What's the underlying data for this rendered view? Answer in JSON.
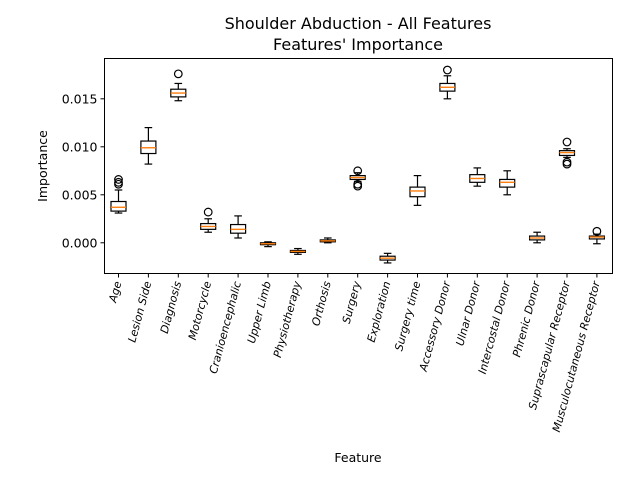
{
  "chart_data": {
    "type": "box",
    "title_line1": "Shoulder Abduction - All Features",
    "title_line2": "Features' Importance",
    "xlabel": "Feature",
    "ylabel": "Importance",
    "ylim": [
      -0.0032,
      0.0192
    ],
    "yticks": [
      0.0,
      0.005,
      0.01,
      0.015
    ],
    "ytick_labels": [
      "0.000",
      "0.005",
      "0.010",
      "0.015"
    ],
    "median_color": "#ff7f0e",
    "box_color": "#000000",
    "grid": false,
    "categories": [
      "Age",
      "Lesion Side",
      "Diagnosis",
      "Motorcycle",
      "Cranioencephalic",
      "Upper Limb",
      "Physiotherapy",
      "Orthosis",
      "Surgery",
      "Exploration",
      "Surgery time",
      "Accessory Donor",
      "Ulnar Donor",
      "Intercostal Donor",
      "Phrenic Donor",
      "Suprascapular Receptor",
      "Musculocutaneous Receptor"
    ],
    "boxes": [
      {
        "whislo": 0.0031,
        "q1": 0.0033,
        "med": 0.0037,
        "q3": 0.0043,
        "whishi": 0.0055,
        "fliers": [
          0.0061,
          0.0063,
          0.0066
        ]
      },
      {
        "whislo": 0.0082,
        "q1": 0.0093,
        "med": 0.0099,
        "q3": 0.0106,
        "whishi": 0.012,
        "fliers": []
      },
      {
        "whislo": 0.0148,
        "q1": 0.0152,
        "med": 0.0156,
        "q3": 0.016,
        "whishi": 0.0166,
        "fliers": [
          0.0176
        ]
      },
      {
        "whislo": 0.0011,
        "q1": 0.0014,
        "med": 0.0017,
        "q3": 0.002,
        "whishi": 0.0025,
        "fliers": [
          0.0032
        ]
      },
      {
        "whislo": 0.0005,
        "q1": 0.001,
        "med": 0.0014,
        "q3": 0.0019,
        "whishi": 0.0028,
        "fliers": []
      },
      {
        "whislo": -0.0004,
        "q1": -0.0002,
        "med": -0.0001,
        "q3": 0.0,
        "whishi": 0.0001,
        "fliers": []
      },
      {
        "whislo": -0.0012,
        "q1": -0.001,
        "med": -0.0009,
        "q3": -0.0008,
        "whishi": -0.0006,
        "fliers": []
      },
      {
        "whislo": 0.0,
        "q1": 0.0001,
        "med": 0.0002,
        "q3": 0.0003,
        "whishi": 0.0005,
        "fliers": []
      },
      {
        "whislo": 0.0064,
        "q1": 0.0066,
        "med": 0.0068,
        "q3": 0.007,
        "whishi": 0.0073,
        "fliers": [
          0.0059,
          0.0061,
          0.0075
        ]
      },
      {
        "whislo": -0.0021,
        "q1": -0.0018,
        "med": -0.0016,
        "q3": -0.0014,
        "whishi": -0.0011,
        "fliers": []
      },
      {
        "whislo": 0.0039,
        "q1": 0.0048,
        "med": 0.0054,
        "q3": 0.0058,
        "whishi": 0.007,
        "fliers": []
      },
      {
        "whislo": 0.015,
        "q1": 0.0158,
        "med": 0.0162,
        "q3": 0.0166,
        "whishi": 0.0174,
        "fliers": [
          0.018
        ]
      },
      {
        "whislo": 0.0059,
        "q1": 0.0063,
        "med": 0.0067,
        "q3": 0.0071,
        "whishi": 0.0078,
        "fliers": []
      },
      {
        "whislo": 0.005,
        "q1": 0.0058,
        "med": 0.0063,
        "q3": 0.0066,
        "whishi": 0.0075,
        "fliers": []
      },
      {
        "whislo": 0.0,
        "q1": 0.0003,
        "med": 0.0005,
        "q3": 0.0007,
        "whishi": 0.0011,
        "fliers": []
      },
      {
        "whislo": 0.0089,
        "q1": 0.0091,
        "med": 0.0094,
        "q3": 0.0096,
        "whishi": 0.0098,
        "fliers": [
          0.0082,
          0.0084,
          0.0105
        ]
      },
      {
        "whislo": -0.0001,
        "q1": 0.0004,
        "med": 0.0006,
        "q3": 0.0007,
        "whishi": 0.0009,
        "fliers": [
          0.0012
        ]
      }
    ]
  }
}
